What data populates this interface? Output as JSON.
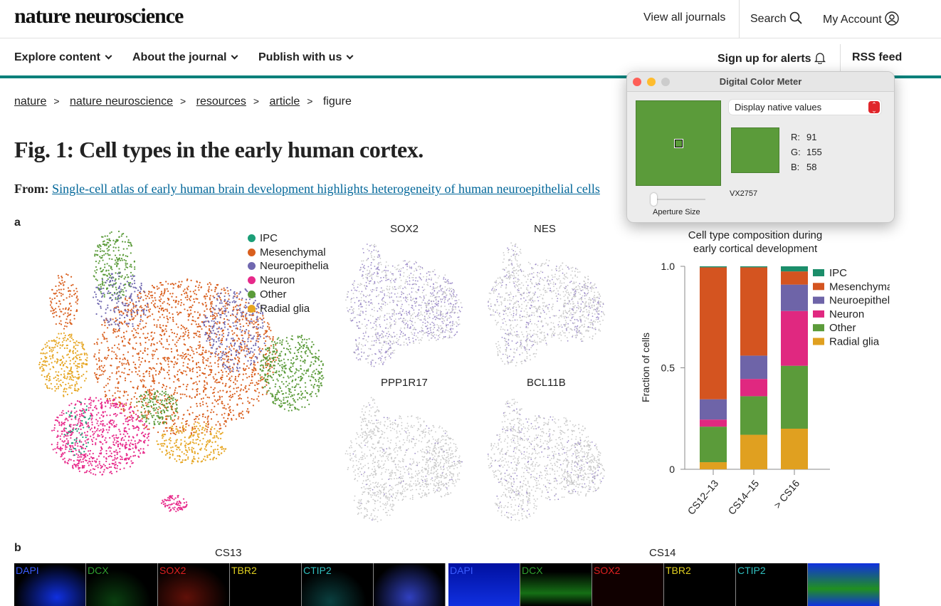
{
  "header": {
    "logo": "nature neuroscience",
    "view_all": "View all journals",
    "search": "Search",
    "account": "My Account"
  },
  "nav": {
    "explore": "Explore content",
    "about": "About the journal",
    "publish": "Publish with us",
    "alerts": "Sign up for alerts",
    "rss": "RSS feed"
  },
  "breadcrumb": [
    "nature",
    "nature neuroscience",
    "resources",
    "article",
    "figure"
  ],
  "page": {
    "title": "Fig. 1: Cell types in the early human cortex.",
    "from_label": "From:",
    "from_link": "Single-cell atlas of early human brain development highlights heterogeneity of human neuroepithelial cells"
  },
  "panel_a": {
    "label": "a",
    "legend": [
      {
        "name": "IPC",
        "color": "#1b9e77"
      },
      {
        "name": "Mesenchymal",
        "color": "#d95f1e"
      },
      {
        "name": "Neuroepithelia",
        "color": "#7068b0"
      },
      {
        "name": "Neuron",
        "color": "#e7298a"
      },
      {
        "name": "Other",
        "color": "#5b9b3a"
      },
      {
        "name": "Radial glia",
        "color": "#e6a623"
      }
    ],
    "genes": [
      "SOX2",
      "NES",
      "PPP1R17",
      "BCL11B"
    ]
  },
  "chart_data": {
    "type": "bar",
    "stacked": true,
    "title": "Cell type composition during early cortical development",
    "xlabel": "",
    "ylabel": "Fraction of cells",
    "ylim": [
      0,
      1
    ],
    "yticks": [
      "0",
      "0.5",
      "1.0"
    ],
    "categories": [
      "CS12–13",
      "CS14–15",
      "> CS16"
    ],
    "series": [
      {
        "name": "Radial glia",
        "color": "#e0a020",
        "values": [
          0.035,
          0.17,
          0.2
        ]
      },
      {
        "name": "Other",
        "color": "#5b9b3a",
        "values": [
          0.175,
          0.19,
          0.31
        ]
      },
      {
        "name": "Neuron",
        "color": "#e02880",
        "values": [
          0.035,
          0.085,
          0.27
        ]
      },
      {
        "name": "Neuroepithelia",
        "color": "#6e64a8",
        "values": [
          0.1,
          0.115,
          0.13
        ]
      },
      {
        "name": "Mesenchymal",
        "color": "#d45420",
        "values": [
          0.65,
          0.435,
          0.065
        ]
      },
      {
        "name": "IPC",
        "color": "#1b8e6a",
        "values": [
          0.005,
          0.005,
          0.025
        ]
      }
    ],
    "legend_order": [
      "IPC",
      "Mesenchymal",
      "Neuroepithelia",
      "Neuron",
      "Other",
      "Radial glia"
    ],
    "legend_position": "right"
  },
  "panel_b": {
    "label": "b",
    "groups": [
      {
        "title": "CS13",
        "channels": [
          "DAPI",
          "DCX",
          "SOX2",
          "TBR2",
          "CTIP2",
          ""
        ]
      },
      {
        "title": "CS14",
        "channels": [
          "DAPI",
          "DCX",
          "SOX2",
          "TBR2",
          "CTIP2",
          ""
        ]
      }
    ]
  },
  "color_meter": {
    "title": "Digital Color Meter",
    "mode": "Display native values",
    "r_label": "R:",
    "r": "91",
    "g_label": "G:",
    "g": "155",
    "b_label": "B:",
    "b": "58",
    "display": "VX2757",
    "aperture": "Aperture Size",
    "color": "#5b9b3a"
  }
}
